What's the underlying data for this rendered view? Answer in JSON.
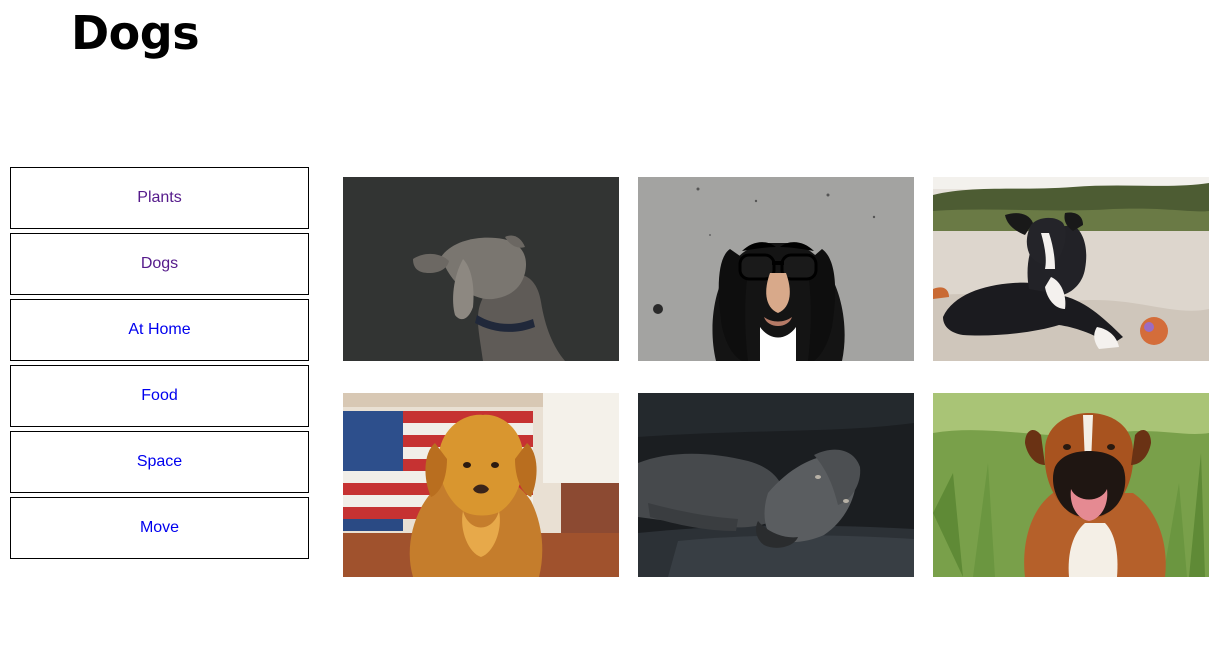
{
  "page": {
    "title": "Dogs"
  },
  "nav": {
    "items": [
      {
        "label": "Plants",
        "color": "#551a8b"
      },
      {
        "label": "Dogs",
        "color": "#551a8b"
      },
      {
        "label": "At Home",
        "color": "#0000ee"
      },
      {
        "label": "Food",
        "color": "#0000ee"
      },
      {
        "label": "Space",
        "color": "#0000ee"
      },
      {
        "label": "Move",
        "color": "#0000ee"
      }
    ]
  },
  "gallery": {
    "photos": [
      {
        "icon": "weimaraner-dark-photo"
      },
      {
        "icon": "spaniel-disguise-glasses-photo"
      },
      {
        "icon": "puppy-on-beach-photo"
      },
      {
        "icon": "golden-retriever-flag-photo"
      },
      {
        "icon": "weimaraner-lying-photo"
      },
      {
        "icon": "boxer-in-grass-photo"
      }
    ]
  }
}
